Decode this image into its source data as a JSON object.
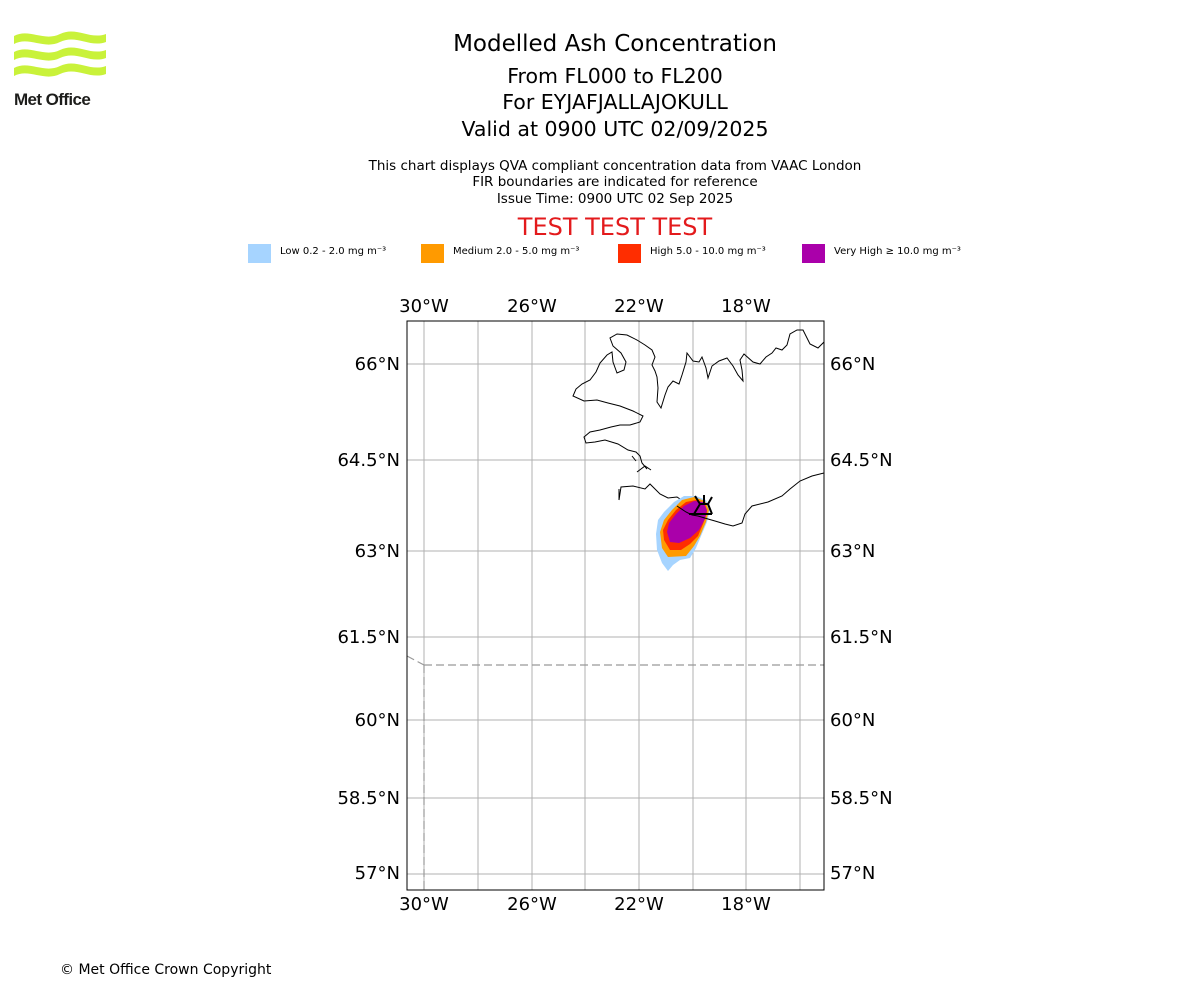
{
  "logo": {
    "text": "Met Office",
    "color": "#c9f23a"
  },
  "title": {
    "main": "Modelled Ash Concentration",
    "levels": "From FL000 to FL200",
    "volcano": "For EYJAFJALLAJOKULL",
    "valid": "Valid at 0900 UTC 02/09/2025"
  },
  "subtitle": {
    "line1": "This chart displays QVA compliant concentration data from VAAC London",
    "line2": "FIR boundaries are indicated for reference",
    "line3": "Issue Time: 0900 UTC 02 Sep 2025"
  },
  "test_banner": {
    "text": "TEST TEST TEST",
    "color": "#e31a1c"
  },
  "legend": [
    {
      "label": "Low 0.2 - 2.0 mg m⁻³",
      "color": "#a6d4ff"
    },
    {
      "label": "Medium 2.0 - 5.0 mg m⁻³",
      "color": "#ff9a00"
    },
    {
      "label": "High 5.0 - 10.0 mg m⁻³",
      "color": "#ff2d00"
    },
    {
      "label": "Very High ≥ 10.0 mg m⁻³",
      "color": "#aa00aa"
    }
  ],
  "map": {
    "lon_range": [
      -30.3,
      -14.7
    ],
    "lat_range": [
      56.7,
      66.7
    ],
    "lon_ticks": [
      "30°W",
      "26°W",
      "22°W",
      "18°W"
    ],
    "lat_ticks": [
      "66°N",
      "64.5°N",
      "63°N",
      "61.5°N",
      "60°N",
      "58.5°N",
      "57°N"
    ],
    "volcano_location": {
      "lon": -19.6,
      "lat": 63.6
    },
    "fir_boundary_lat": 61.0,
    "fir_boundary_lon": -30.0
  },
  "copyright": "© Met Office Crown Copyright"
}
